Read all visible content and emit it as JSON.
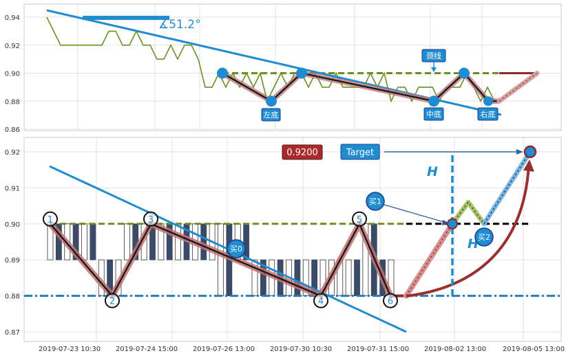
{
  "chart_data": [
    {
      "type": "line",
      "panel": "top",
      "ylim": [
        0.86,
        0.95
      ],
      "y_ticks": [
        "0.94",
        "0.92",
        "0.90",
        "0.88",
        "0.86"
      ],
      "grid": true,
      "series": [
        {
          "color": "#6b8e23",
          "values": [
            0.94,
            0.93,
            0.92,
            0.92,
            0.92,
            0.92,
            0.92,
            0.92,
            0.92,
            0.93,
            0.93,
            0.92,
            0.92,
            0.93,
            0.92,
            0.92,
            0.91,
            0.91,
            0.92,
            0.91,
            0.92,
            0.92,
            0.91,
            0.89,
            0.89,
            0.9,
            0.89,
            0.9,
            0.89,
            0.9,
            0.89,
            0.9,
            0.88,
            0.89,
            0.9,
            0.89,
            0.9,
            0.9,
            0.89,
            0.9,
            0.89,
            0.89,
            0.9,
            0.89,
            0.89,
            0.89,
            0.89,
            0.9,
            0.89,
            0.9,
            0.88,
            0.89,
            0.89,
            0.88,
            0.89,
            0.89,
            0.89,
            0.88,
            0.89,
            0.89,
            0.89,
            0.9,
            0.89,
            0.88,
            0.89,
            0.88,
            0.88
          ]
        }
      ],
      "pattern_points": [
        0.9,
        0.88,
        0.9,
        0.88,
        0.9,
        0.88,
        0.88
      ],
      "projection_end": 0.9,
      "neckline": 0.9,
      "angle_label": "∡51.2°",
      "labels": {
        "neck": "颈线",
        "left": "左底",
        "mid": "中底",
        "right": "右底"
      }
    },
    {
      "type": "bar",
      "panel": "bottom",
      "ylim": [
        0.865,
        0.925
      ],
      "y_ticks": [
        "0.92",
        "0.91",
        "0.90",
        "0.89",
        "0.88",
        "0.87"
      ],
      "x_ticks": [
        "2019-07-23 10:30",
        "2019-07-24 15:00",
        "2019-07-26 13:00",
        "2019-07-30 10:30",
        "2019-07-31 15:00",
        "2019-08-02 13:00",
        "2019-08-05 13:00"
      ],
      "grid": true,
      "candles": [
        [
          0.9,
          0.89,
          0.9,
          0.89,
          false
        ],
        [
          0.9,
          0.89,
          0.9,
          0.89,
          true
        ],
        [
          0.9,
          0.89,
          0.9,
          0.89,
          false
        ],
        [
          0.9,
          0.89,
          0.9,
          0.89,
          true
        ],
        [
          0.9,
          0.89,
          0.9,
          0.89,
          false
        ],
        [
          0.9,
          0.89,
          0.9,
          0.89,
          true
        ],
        [
          0.89,
          0.88,
          0.89,
          0.88,
          false
        ],
        [
          0.89,
          0.88,
          0.89,
          0.88,
          true
        ],
        [
          0.89,
          0.88,
          0.89,
          0.88,
          false
        ],
        [
          0.9,
          0.89,
          0.9,
          0.89,
          false
        ],
        [
          0.9,
          0.89,
          0.9,
          0.89,
          true
        ],
        [
          0.9,
          0.89,
          0.9,
          0.89,
          false
        ],
        [
          0.9,
          0.89,
          0.9,
          0.89,
          true
        ],
        [
          0.9,
          0.89,
          0.9,
          0.89,
          false
        ],
        [
          0.9,
          0.89,
          0.9,
          0.89,
          true
        ],
        [
          0.9,
          0.89,
          0.9,
          0.89,
          false
        ],
        [
          0.9,
          0.89,
          0.9,
          0.89,
          true
        ],
        [
          0.9,
          0.89,
          0.9,
          0.89,
          false
        ],
        [
          0.9,
          0.89,
          0.9,
          0.89,
          true
        ],
        [
          0.9,
          0.89,
          0.9,
          0.89,
          false
        ],
        [
          0.9,
          0.88,
          0.9,
          0.88,
          false
        ],
        [
          0.9,
          0.88,
          0.9,
          0.88,
          true
        ],
        [
          0.9,
          0.89,
          0.9,
          0.89,
          false
        ],
        [
          0.9,
          0.89,
          0.9,
          0.89,
          true
        ],
        [
          0.89,
          0.88,
          0.89,
          0.88,
          false
        ],
        [
          0.89,
          0.88,
          0.89,
          0.88,
          true
        ],
        [
          0.89,
          0.88,
          0.89,
          0.88,
          false
        ],
        [
          0.89,
          0.88,
          0.89,
          0.88,
          true
        ],
        [
          0.89,
          0.88,
          0.89,
          0.88,
          false
        ],
        [
          0.89,
          0.88,
          0.89,
          0.88,
          true
        ],
        [
          0.89,
          0.88,
          0.89,
          0.88,
          false
        ],
        [
          0.89,
          0.88,
          0.89,
          0.88,
          true
        ],
        [
          0.89,
          0.88,
          0.89,
          0.88,
          false
        ],
        [
          0.89,
          0.88,
          0.89,
          0.88,
          false
        ],
        [
          0.89,
          0.88,
          0.89,
          0.88,
          false
        ],
        [
          0.89,
          0.88,
          0.89,
          0.88,
          false
        ],
        [
          0.89,
          0.88,
          0.89,
          0.88,
          true
        ],
        [
          0.9,
          0.88,
          0.9,
          0.88,
          false
        ],
        [
          0.9,
          0.88,
          0.9,
          0.88,
          true
        ],
        [
          0.89,
          0.88,
          0.89,
          0.88,
          true
        ],
        [
          0.89,
          0.88,
          0.89,
          0.88,
          false
        ]
      ],
      "pattern_points": [
        0.9,
        0.88,
        0.9,
        0.88,
        0.9,
        0.88
      ],
      "pattern_numbers": [
        "1",
        "2",
        "3",
        "4",
        "5",
        "6"
      ],
      "neckline": 0.9,
      "support": 0.88,
      "target": 0.92,
      "price_label": "0.9200",
      "target_label": "Target",
      "h_label": "H",
      "buy_labels": [
        "买0",
        "买1",
        "买2"
      ],
      "projection": [
        0.88,
        0.9,
        0.906,
        0.9,
        0.92
      ]
    }
  ],
  "colors": {
    "accent_blue": "#1f8bd0",
    "pattern_red": "#8b2b2b",
    "olive": "#6b8e23",
    "candle_dark": "#3b4a66",
    "price_box": "#a82a2a"
  }
}
